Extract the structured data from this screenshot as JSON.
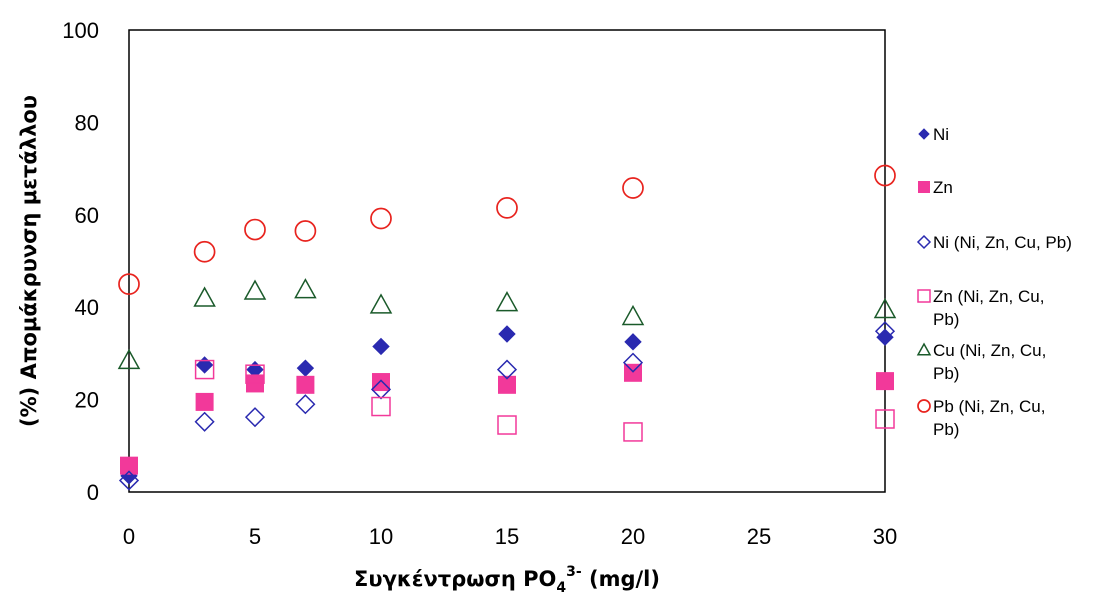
{
  "chart_data": {
    "type": "scatter",
    "title": "",
    "xlabel": {
      "main": "Συγκέντρωση PO",
      "sub": "4",
      "sup": "3-",
      "unit": " (mg/l)"
    },
    "ylabel": "(%)  Απομάκρυνση μετάλλου",
    "xlim": [
      0,
      30
    ],
    "ylim": [
      0,
      100
    ],
    "xticks": [
      0,
      5,
      10,
      15,
      20,
      25,
      30
    ],
    "yticks": [
      0,
      20,
      40,
      60,
      80,
      100
    ],
    "grid": false,
    "legend_position": "right",
    "series": [
      {
        "name": "Ni",
        "legend_lines": [
          "Ni"
        ],
        "marker": "diamond-filled",
        "color": "#2a2ab0",
        "x": [
          0,
          3,
          5,
          7,
          10,
          15,
          20,
          30
        ],
        "y": [
          3.5,
          27.5,
          26.5,
          26.8,
          31.5,
          34.2,
          32.5,
          33.5
        ]
      },
      {
        "name": "Zn",
        "legend_lines": [
          "Zn"
        ],
        "marker": "square-filled",
        "color": "#f2399a",
        "x": [
          0,
          3,
          5,
          7,
          10,
          15,
          20,
          30
        ],
        "y": [
          5.7,
          19.5,
          23.5,
          23.2,
          23.8,
          23.2,
          25.8,
          24.0
        ]
      },
      {
        "name": "Ni (Ni, Zn, Cu, Pb)",
        "legend_lines": [
          "Ni (Ni, Zn, Cu, Pb)"
        ],
        "marker": "diamond-open",
        "color": "#2a2ab0",
        "x": [
          0,
          3,
          5,
          7,
          10,
          15,
          20,
          30
        ],
        "y": [
          2.5,
          15.2,
          16.2,
          19.0,
          22.2,
          26.5,
          28.0,
          34.8
        ]
      },
      {
        "name": "Zn (Ni, Zn, Cu, Pb)",
        "legend_lines": [
          "Zn (Ni, Zn, Cu,",
          "Pb)"
        ],
        "marker": "square-open",
        "color": "#f2399a",
        "x": [
          3,
          5,
          10,
          15,
          20,
          30
        ],
        "y": [
          26.5,
          25.5,
          18.5,
          14.5,
          13.0,
          15.8
        ]
      },
      {
        "name": "Cu (Ni, Zn, Cu, Pb)",
        "legend_lines": [
          "Cu (Ni, Zn, Cu,",
          "Pb)"
        ],
        "marker": "triangle-open",
        "color": "#1a5a2a",
        "x": [
          0,
          3,
          5,
          7,
          10,
          15,
          20,
          30
        ],
        "y": [
          28.5,
          42.0,
          43.5,
          43.8,
          40.5,
          41.0,
          38.0,
          39.5
        ]
      },
      {
        "name": "Pb (Ni, Zn, Cu, Pb)",
        "legend_lines": [
          "Pb (Ni, Zn, Cu,",
          "Pb)"
        ],
        "marker": "circle-open",
        "color": "#e8231e",
        "x": [
          0,
          3,
          5,
          7,
          10,
          15,
          20,
          30
        ],
        "y": [
          45.0,
          52.0,
          56.8,
          56.5,
          59.2,
          61.5,
          65.8,
          68.5
        ]
      }
    ]
  }
}
